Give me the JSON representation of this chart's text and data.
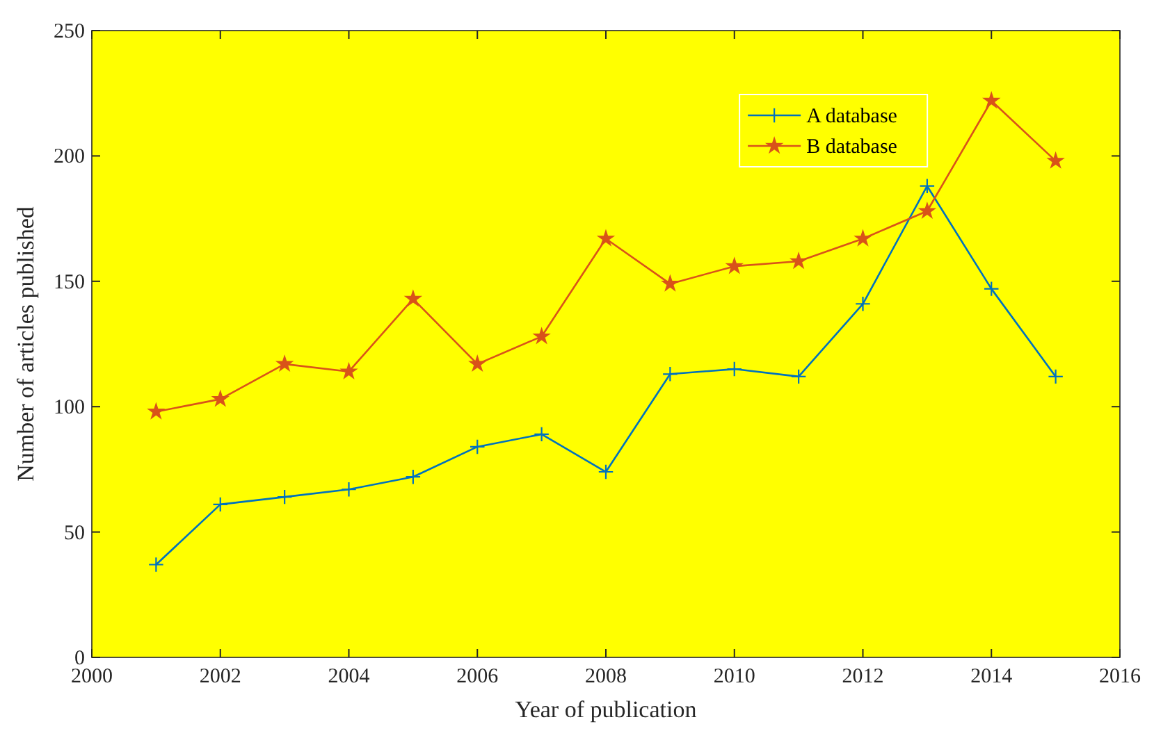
{
  "chart_data": {
    "type": "line",
    "xlabel": "Year of publication",
    "ylabel": "Number of articles published",
    "x": [
      2001,
      2002,
      2003,
      2004,
      2005,
      2006,
      2007,
      2008,
      2009,
      2010,
      2011,
      2012,
      2013,
      2014,
      2015
    ],
    "series": [
      {
        "name": "A database",
        "color": "#0072bd",
        "marker": "cross",
        "values": [
          37,
          61,
          64,
          67,
          72,
          84,
          89,
          74,
          113,
          115,
          112,
          141,
          188,
          147,
          112
        ]
      },
      {
        "name": "B database",
        "color": "#d95319",
        "marker": "star",
        "values": [
          98,
          103,
          117,
          114,
          143,
          117,
          128,
          167,
          149,
          156,
          158,
          167,
          178,
          222,
          198
        ]
      }
    ],
    "xlim": [
      2000,
      2016
    ],
    "xticks": [
      2000,
      2002,
      2004,
      2006,
      2008,
      2010,
      2012,
      2014,
      2016
    ],
    "ylim": [
      0,
      250
    ],
    "yticks": [
      0,
      50,
      100,
      150,
      200,
      250
    ],
    "grid": false,
    "legend": "top right",
    "line_style": "solid"
  }
}
